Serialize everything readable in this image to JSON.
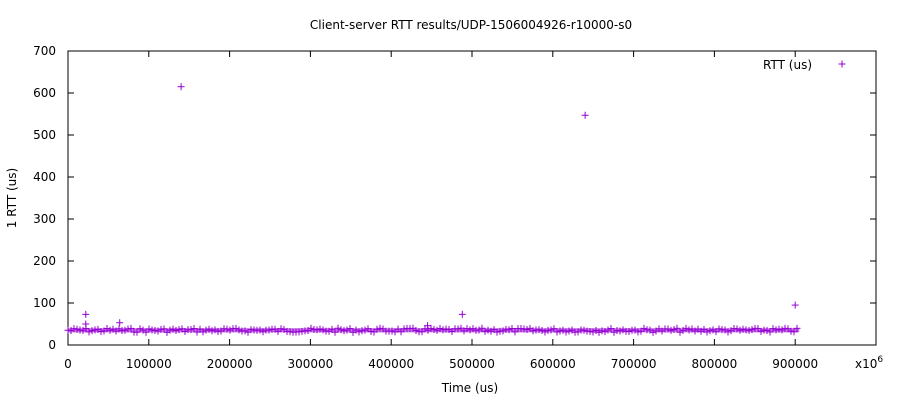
{
  "chart_data": {
    "type": "scatter",
    "title": "Client-server RTT results/UDP-1506004926-r10000-s0",
    "xlabel": "Time (us)",
    "ylabel": "1 RTT (us)",
    "x_multiplier_label": "x10",
    "x_multiplier_exponent": "6",
    "xlim": [
      0,
      1000000
    ],
    "ylim": [
      0,
      700
    ],
    "xticks": [
      "0",
      "100000",
      "200000",
      "300000",
      "400000",
      "500000",
      "600000",
      "700000",
      "800000",
      "900000"
    ],
    "xtick_values": [
      0,
      100000,
      200000,
      300000,
      400000,
      500000,
      600000,
      700000,
      800000,
      900000
    ],
    "yticks": [
      "0",
      "100",
      "200",
      "300",
      "400",
      "500",
      "600",
      "700"
    ],
    "ytick_values": [
      0,
      100,
      200,
      300,
      400,
      500,
      600,
      700
    ],
    "grid": false,
    "legend_position": "top-right",
    "series": [
      {
        "name": "RTT (us)",
        "marker": "+",
        "color": "#9400d3",
        "baseline_range": {
          "x": [
            0,
            905000
          ],
          "y": [
            30,
            40
          ]
        },
        "points": [
          {
            "x": 22000,
            "y": 73
          },
          {
            "x": 22000,
            "y": 50
          },
          {
            "x": 64000,
            "y": 53
          },
          {
            "x": 140000,
            "y": 615
          },
          {
            "x": 445000,
            "y": 46
          },
          {
            "x": 488000,
            "y": 73
          },
          {
            "x": 640000,
            "y": 547
          },
          {
            "x": 900000,
            "y": 95
          }
        ]
      }
    ]
  }
}
